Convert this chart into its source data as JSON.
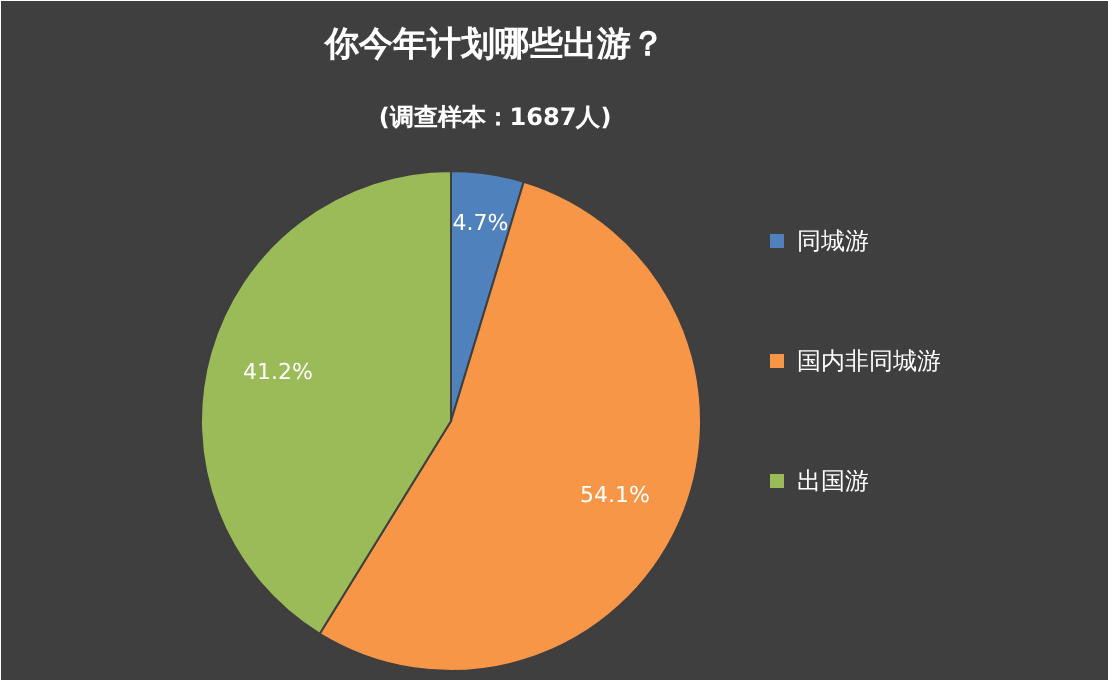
{
  "chart_data": {
    "type": "pie",
    "title": "你今年计划哪些出游？",
    "subtitle": "(调查样本：1687人)",
    "categories": [
      "同城游",
      "国内非同城游",
      "出国游"
    ],
    "values": [
      4.7,
      54.1,
      41.2
    ],
    "colors": [
      "#4f81bd",
      "#f79646",
      "#9bbb59"
    ],
    "value_labels": [
      "4.7%",
      "54.1%",
      "41.2%"
    ],
    "legend": "right"
  }
}
